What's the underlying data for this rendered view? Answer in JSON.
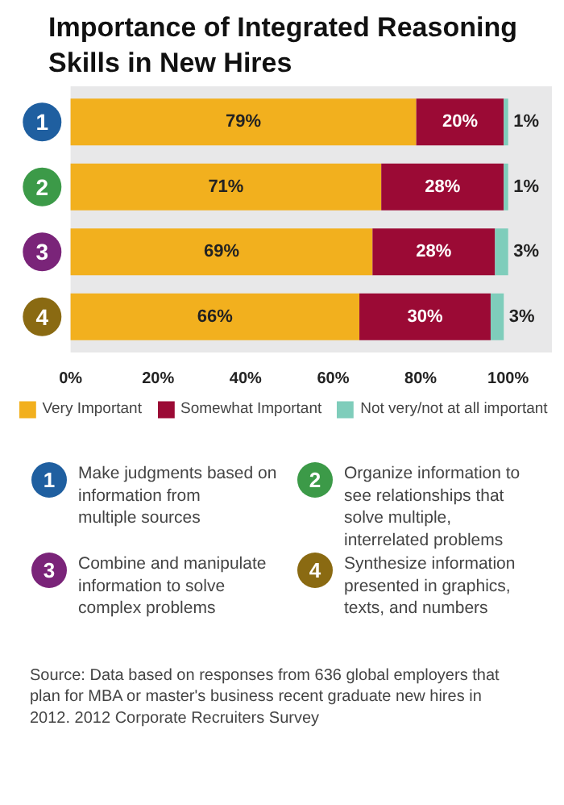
{
  "chart_data": {
    "type": "bar",
    "orientation": "horizontal",
    "stacked": true,
    "title": "Importance of Integrated Reasoning Skills in New Hires",
    "categories": [
      "1",
      "2",
      "3",
      "4"
    ],
    "series": [
      {
        "name": "Very Important",
        "color": "#f2b01e",
        "values": [
          79,
          71,
          69,
          66
        ],
        "value_labels": [
          "79%",
          "71%",
          "69%",
          "66%"
        ]
      },
      {
        "name": "Somewhat Important",
        "color": "#9b0a35",
        "values": [
          20,
          28,
          28,
          30
        ],
        "value_labels": [
          "20%",
          "28%",
          "28%",
          "30%"
        ]
      },
      {
        "name": "Not very/not at all important",
        "color": "#7fcdbb",
        "values": [
          1,
          1,
          3,
          3
        ],
        "value_labels": [
          "1%",
          "1%",
          "3%",
          "3%"
        ]
      }
    ],
    "xlim": [
      0,
      100
    ],
    "xticks": [
      {
        "value": 0,
        "label": "0%"
      },
      {
        "value": 20,
        "label": "20%"
      },
      {
        "value": 40,
        "label": "40%"
      },
      {
        "value": 60,
        "label": "60%"
      },
      {
        "value": 80,
        "label": "80%"
      },
      {
        "value": 100,
        "label": "100%"
      }
    ],
    "grid": false,
    "legend": "bottom",
    "annotations": [
      "Make judgments based on information from multiple sources",
      "Organize information to see relationships that solve multiple, interrelated problems",
      "Combine and manipulate information to solve complex problems",
      "Synthesize information presented in graphics, texts, and numbers",
      "Source: Data based on responses from 636 global employers that plan for MBA or master's business recent graduate new hires in 2012. 2012 Corporate Recruiters Survey"
    ]
  }
}
